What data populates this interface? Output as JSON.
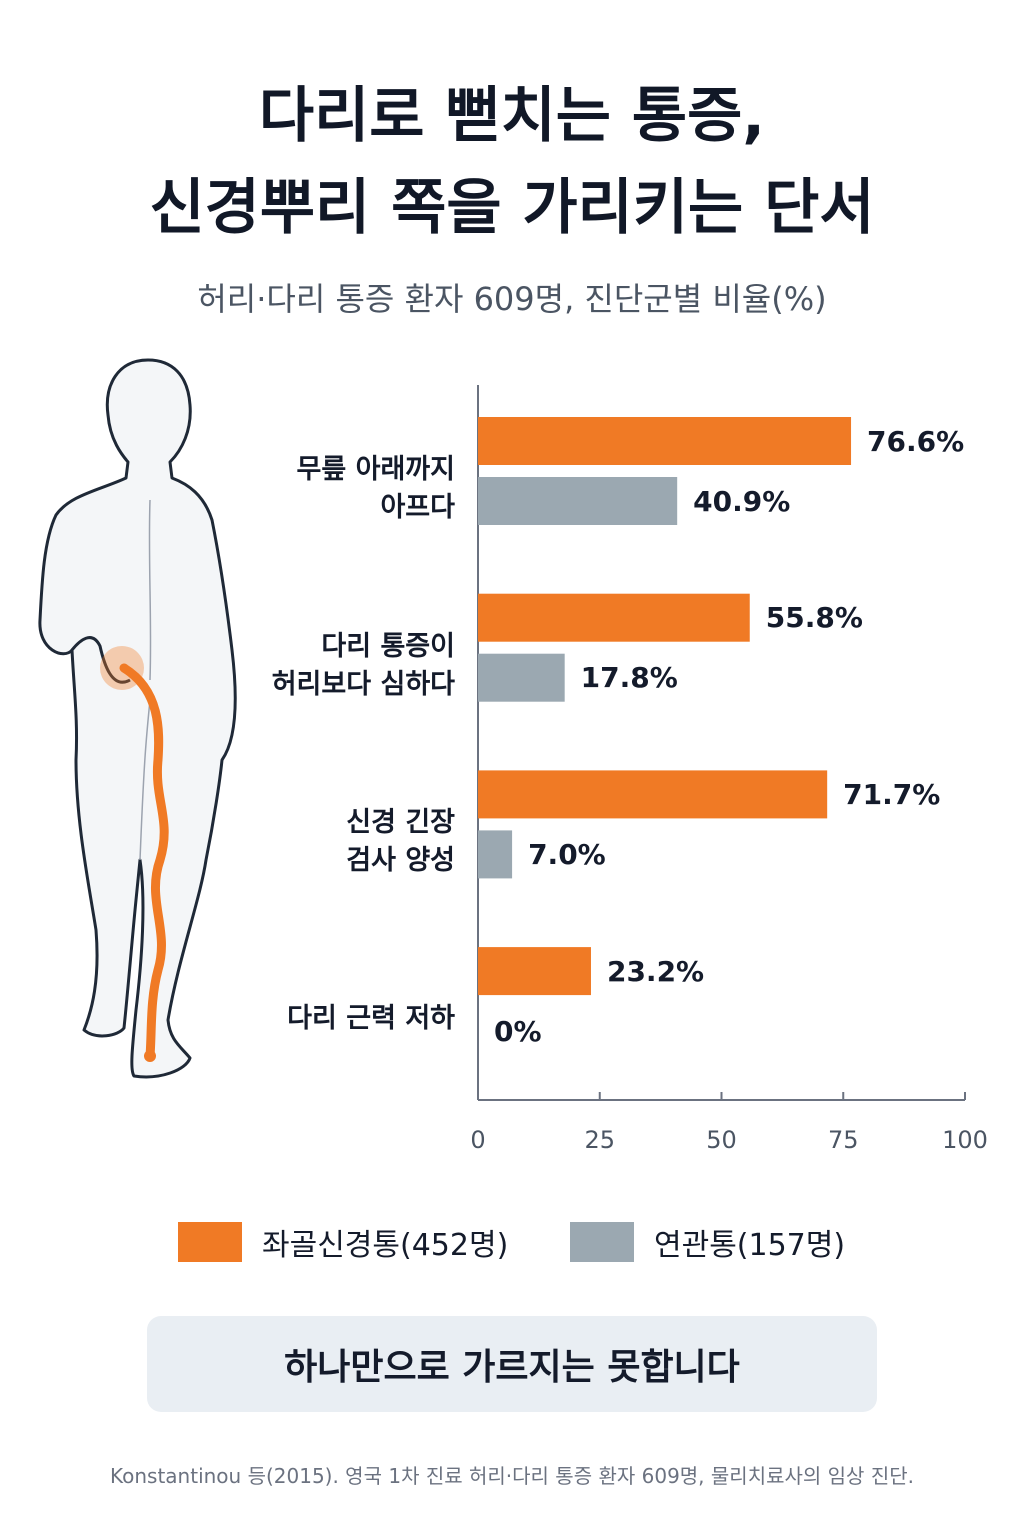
{
  "chart_data": {
    "type": "bar",
    "orientation": "horizontal",
    "title": "다리로 뻗치는 통증,\n신경뿌리 쪽을 가리키는 단서",
    "subtitle": "허리·다리 통증 환자 609명, 진단군별 비율(%)",
    "categories": [
      "무릎 아래까지\n아프다",
      "다리 통증이\n허리보다 심하다",
      "신경 긴장\n검사 양성",
      "다리 근력 저하"
    ],
    "series": [
      {
        "name": "좌골신경통(452명)",
        "color": "#f07a25",
        "values": [
          76.6,
          55.8,
          71.7,
          23.2
        ],
        "value_labels": [
          "76.6%",
          "55.8%",
          "71.7%",
          "23.2%"
        ]
      },
      {
        "name": "연관통(157명)",
        "color": "#9ba8b1",
        "values": [
          40.9,
          17.8,
          7.0,
          0
        ],
        "value_labels": [
          "40.9%",
          "17.8%",
          "7.0%",
          "0%"
        ]
      }
    ],
    "xlim": [
      0,
      100
    ],
    "xticks": [
      0,
      25,
      50,
      75,
      100
    ],
    "callout": "하나만으로 가르지는 못합니다",
    "source": "Konstantinou 등(2015). 영국 1차 진료 허리·다리 통증 환자 609명, 물리치료사의 임상 진단."
  }
}
